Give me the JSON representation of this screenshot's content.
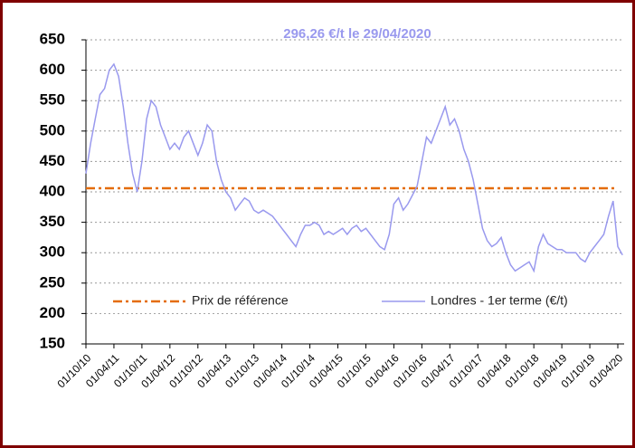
{
  "chart_data": {
    "type": "line",
    "title": "296,26 €/t le 29/04/2020",
    "categories": [
      "01/10/10",
      null,
      null,
      null,
      null,
      null,
      "01/04/11",
      null,
      null,
      null,
      null,
      null,
      "01/10/11",
      null,
      null,
      null,
      null,
      null,
      "01/04/12",
      null,
      null,
      null,
      null,
      null,
      "01/10/12",
      null,
      null,
      null,
      null,
      null,
      "01/04/13",
      null,
      null,
      null,
      null,
      null,
      "01/10/13",
      null,
      null,
      null,
      null,
      null,
      "01/04/14",
      null,
      null,
      null,
      null,
      null,
      "01/10/14",
      null,
      null,
      null,
      null,
      null,
      "01/04/15",
      null,
      null,
      null,
      null,
      null,
      "01/10/15",
      null,
      null,
      null,
      null,
      null,
      "01/04/16",
      null,
      null,
      null,
      null,
      null,
      "01/10/16",
      null,
      null,
      null,
      null,
      null,
      "01/04/17",
      null,
      null,
      null,
      null,
      null,
      "01/10/17",
      null,
      null,
      null,
      null,
      null,
      "01/04/18",
      null,
      null,
      null,
      null,
      null,
      "01/10/18",
      null,
      null,
      null,
      null,
      null,
      "01/04/19",
      null,
      null,
      null,
      null,
      null,
      "01/10/19",
      null,
      null,
      null,
      null,
      null,
      "01/04/20",
      null
    ],
    "series": [
      {
        "name": "Londres - 1er terme (€/t)",
        "color": "#9999ee",
        "values": [
          430,
          480,
          520,
          560,
          570,
          600,
          610,
          590,
          540,
          480,
          430,
          400,
          450,
          520,
          550,
          540,
          510,
          490,
          470,
          480,
          470,
          490,
          500,
          480,
          460,
          480,
          510,
          500,
          450,
          420,
          400,
          390,
          370,
          380,
          390,
          385,
          370,
          365,
          370,
          365,
          360,
          350,
          340,
          330,
          320,
          310,
          330,
          345,
          345,
          350,
          345,
          330,
          335,
          330,
          335,
          340,
          330,
          340,
          345,
          335,
          340,
          330,
          320,
          310,
          305,
          330,
          380,
          390,
          370,
          380,
          395,
          410,
          450,
          490,
          480,
          500,
          520,
          540,
          510,
          520,
          500,
          470,
          450,
          420,
          380,
          340,
          320,
          310,
          315,
          325,
          300,
          280,
          270,
          275,
          280,
          285,
          270,
          310,
          330,
          315,
          310,
          305,
          305,
          300,
          300,
          300,
          290,
          285,
          300,
          310,
          320,
          330,
          360,
          385,
          310,
          296.26
        ]
      }
    ],
    "reference": {
      "name": "Prix de référence",
      "value": 406,
      "color": "#e46c0a"
    },
    "ylim": [
      150,
      650
    ],
    "yticks": [
      150,
      200,
      250,
      300,
      350,
      400,
      450,
      500,
      550,
      600,
      650
    ],
    "grid": true
  }
}
